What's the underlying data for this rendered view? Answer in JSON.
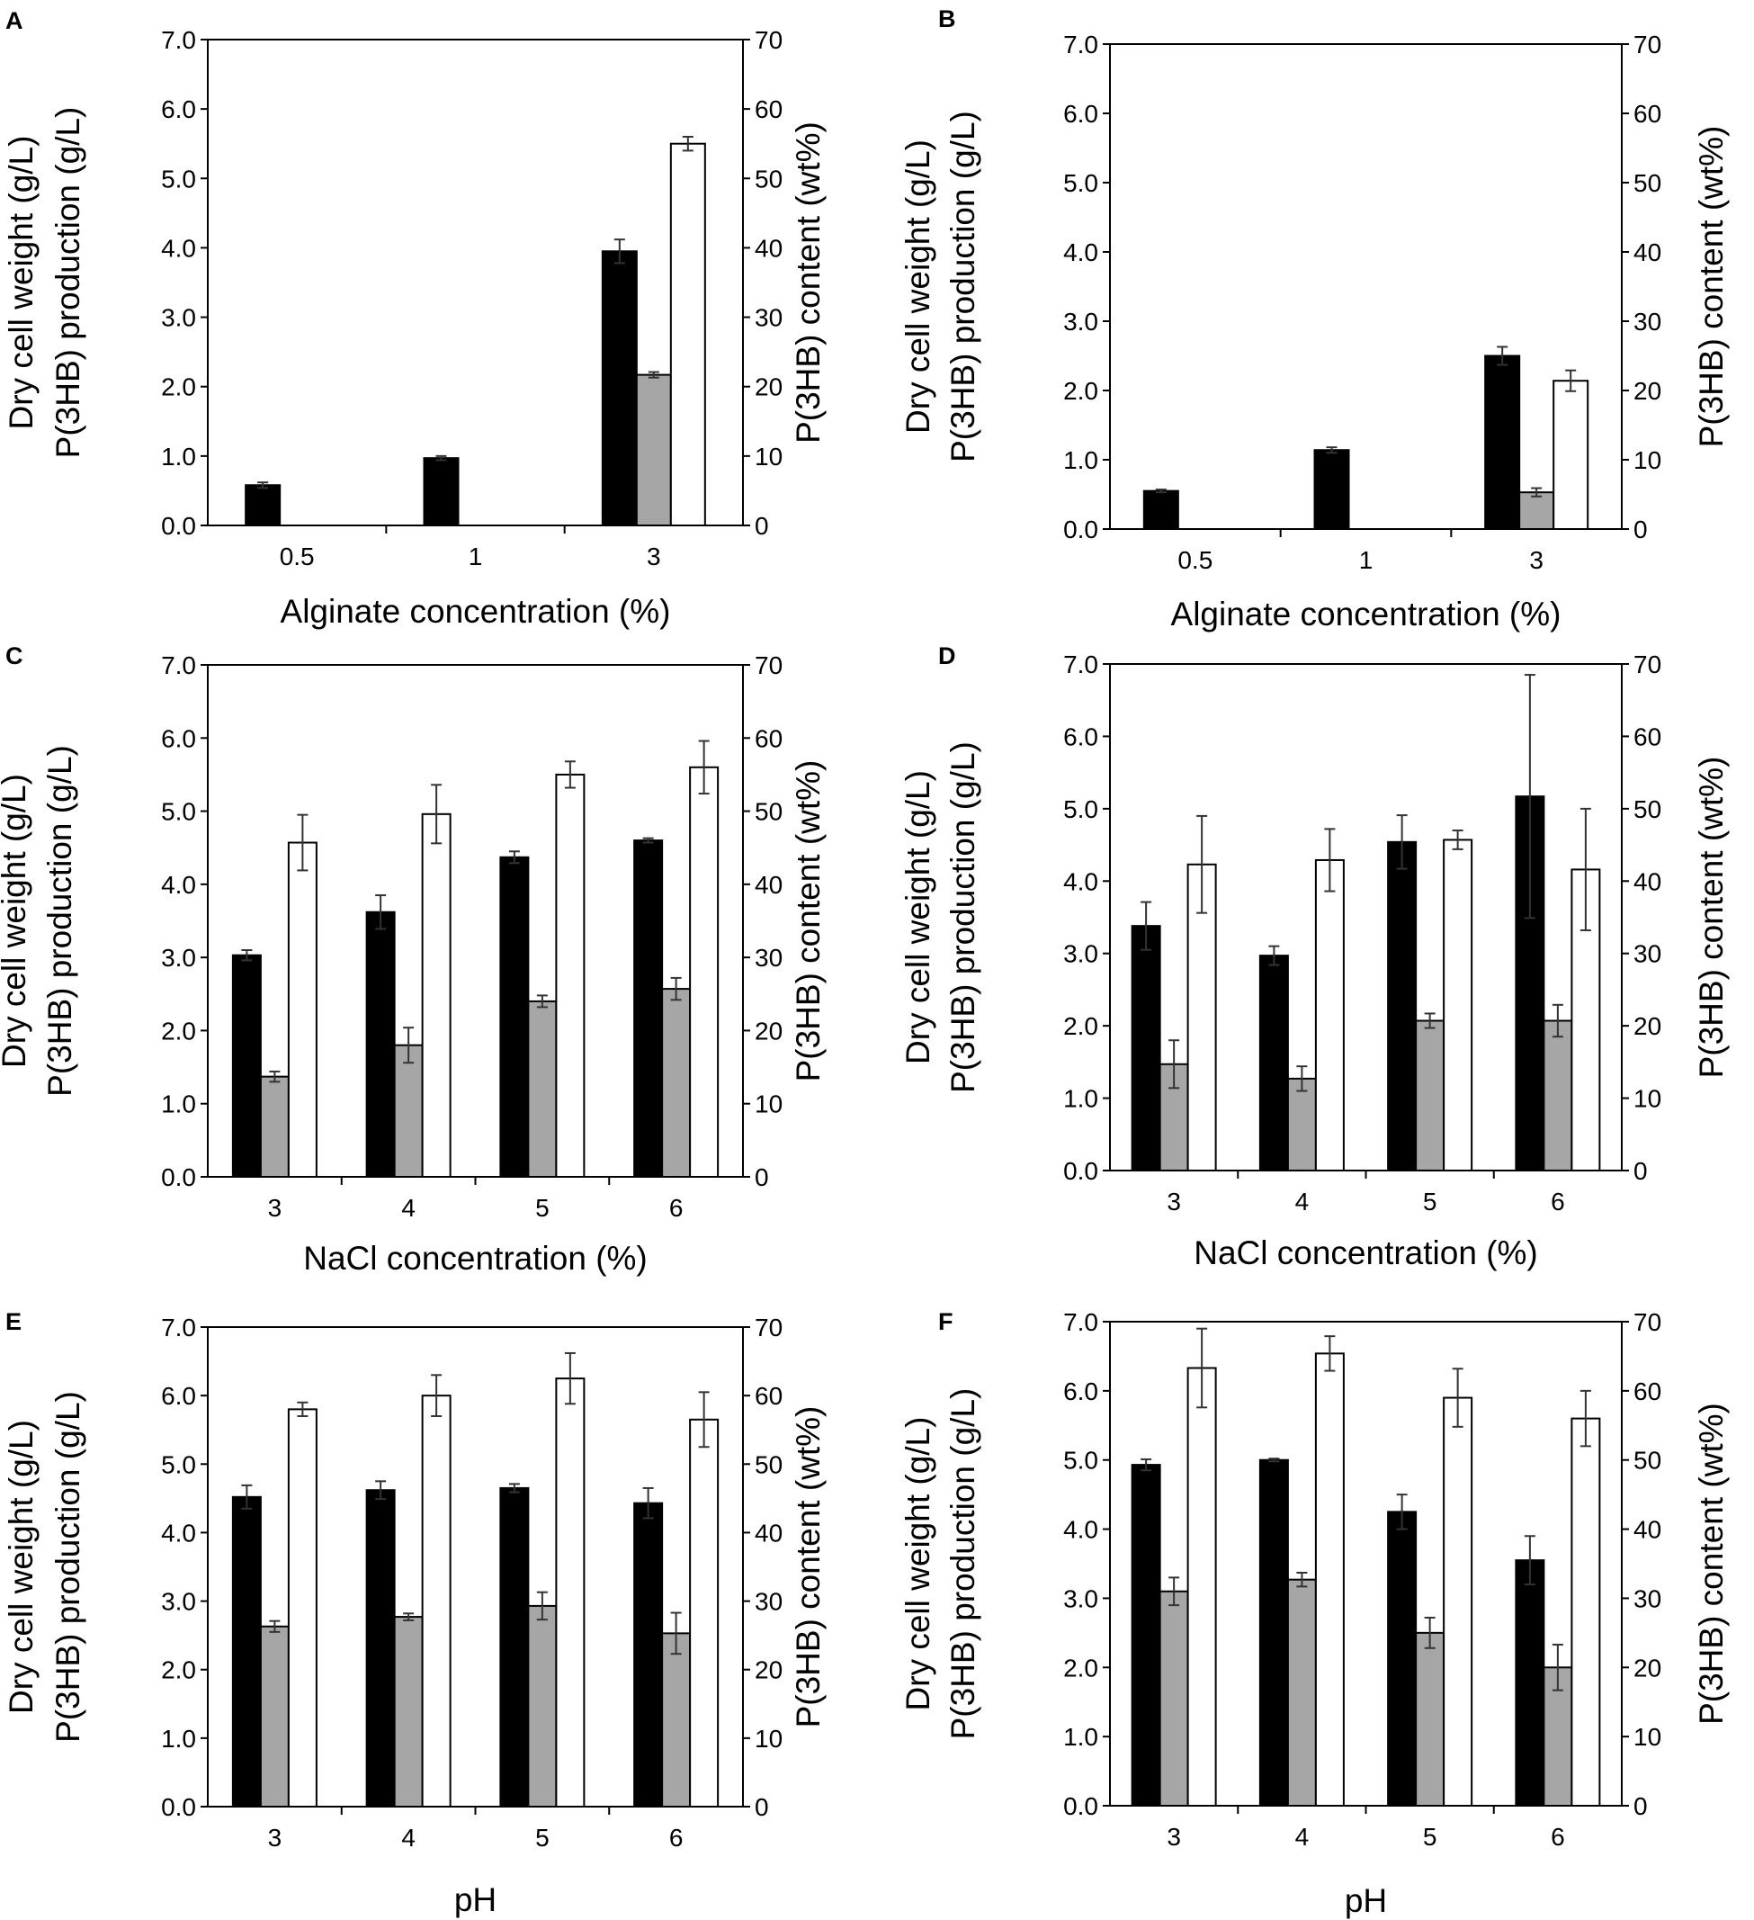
{
  "figure": {
    "legend_series": [
      "Dry cell weight (g/L)",
      "P(3HB) production (g/L)",
      "P(3HB) content (wt%)"
    ],
    "colors": {
      "dcw": "#000000",
      "p3hb": "#a6a6a6",
      "content": "#ffffff",
      "axis": "#000000",
      "error": "#333333"
    }
  },
  "chart_data": [
    {
      "id": "A",
      "type": "bar",
      "letter": "A",
      "categories": [
        "0.5",
        "1",
        "3"
      ],
      "xlabel": "Alginate concentration (%)",
      "ylabel_left": [
        "Dry cell weight (g/L)",
        "P(3HB) production (g/L)"
      ],
      "ylabel_right": "P(3HB) content (wt%)",
      "ylim_left": [
        0,
        7
      ],
      "ylim_right": [
        0,
        70
      ],
      "yticks_left": [
        "0.0",
        "1.0",
        "2.0",
        "3.0",
        "4.0",
        "5.0",
        "6.0",
        "7.0"
      ],
      "yticks_right": [
        "0",
        "10",
        "20",
        "30",
        "40",
        "50",
        "60",
        "70"
      ],
      "series": [
        {
          "name": "Dry cell weight (g/L)",
          "axis": "left",
          "values": [
            0.58,
            0.97,
            3.95
          ],
          "errors": [
            0.04,
            0.03,
            0.17
          ]
        },
        {
          "name": "P(3HB) production (g/L)",
          "axis": "left",
          "values": [
            0,
            0,
            2.17
          ],
          "errors": [
            0,
            0,
            0.04
          ]
        },
        {
          "name": "P(3HB) content (wt%)",
          "axis": "right",
          "values": [
            0,
            0,
            55.0
          ],
          "errors": [
            0,
            0,
            1.0
          ]
        }
      ]
    },
    {
      "id": "B",
      "type": "bar",
      "letter": "B",
      "categories": [
        "0.5",
        "1",
        "3"
      ],
      "xlabel": "Alginate concentration (%)",
      "ylabel_left": [
        "Dry cell weight (g/L)",
        "P(3HB) production (g/L)"
      ],
      "ylabel_right": "P(3HB) content (wt%)",
      "ylim_left": [
        0,
        7
      ],
      "ylim_right": [
        0,
        70
      ],
      "yticks_left": [
        "0.0",
        "1.0",
        "2.0",
        "3.0",
        "4.0",
        "5.0",
        "6.0",
        "7.0"
      ],
      "yticks_right": [
        "0",
        "10",
        "20",
        "30",
        "40",
        "50",
        "60",
        "70"
      ],
      "series": [
        {
          "name": "Dry cell weight (g/L)",
          "axis": "left",
          "values": [
            0.55,
            1.14,
            2.5
          ],
          "errors": [
            0.02,
            0.04,
            0.13
          ]
        },
        {
          "name": "P(3HB) production (g/L)",
          "axis": "left",
          "values": [
            0,
            0,
            0.53
          ],
          "errors": [
            0,
            0,
            0.06
          ]
        },
        {
          "name": "P(3HB) content (wt%)",
          "axis": "right",
          "values": [
            0,
            0,
            21.4
          ],
          "errors": [
            0,
            0,
            1.5
          ]
        }
      ]
    },
    {
      "id": "C",
      "type": "bar",
      "letter": "C",
      "categories": [
        "3",
        "4",
        "5",
        "6"
      ],
      "xlabel": "NaCl concentration (%)",
      "ylabel_left": [
        "Dry cell weight (g/L)",
        "P(3HB) production (g/L)"
      ],
      "ylabel_right": "P(3HB) content (wt%)",
      "ylim_left": [
        0,
        7
      ],
      "ylim_right": [
        0,
        70
      ],
      "yticks_left": [
        "0.0",
        "1.0",
        "2.0",
        "3.0",
        "4.0",
        "5.0",
        "6.0",
        "7.0"
      ],
      "yticks_right": [
        "0",
        "10",
        "20",
        "30",
        "40",
        "50",
        "60",
        "70"
      ],
      "series": [
        {
          "name": "Dry cell weight (g/L)",
          "axis": "left",
          "values": [
            3.03,
            3.62,
            4.37,
            4.6
          ],
          "errors": [
            0.07,
            0.23,
            0.08,
            0.03
          ]
        },
        {
          "name": "P(3HB) production (g/L)",
          "axis": "left",
          "values": [
            1.37,
            1.8,
            2.4,
            2.57
          ],
          "errors": [
            0.07,
            0.24,
            0.08,
            0.15
          ]
        },
        {
          "name": "P(3HB) content (wt%)",
          "axis": "right",
          "values": [
            45.7,
            49.6,
            55.0,
            56.0
          ],
          "errors": [
            3.8,
            4.0,
            1.8,
            3.6
          ]
        }
      ]
    },
    {
      "id": "D",
      "type": "bar",
      "letter": "D",
      "categories": [
        "3",
        "4",
        "5",
        "6"
      ],
      "xlabel": "NaCl concentration (%)",
      "ylabel_left": [
        "Dry cell weight (g/L)",
        "P(3HB) production (g/L)"
      ],
      "ylabel_right": "P(3HB) content (wt%)",
      "ylim_left": [
        0,
        7
      ],
      "ylim_right": [
        0,
        70
      ],
      "yticks_left": [
        "0.0",
        "1.0",
        "2.0",
        "3.0",
        "4.0",
        "5.0",
        "6.0",
        "7.0"
      ],
      "yticks_right": [
        "0",
        "10",
        "20",
        "30",
        "40",
        "50",
        "60",
        "70"
      ],
      "series": [
        {
          "name": "Dry cell weight (g/L)",
          "axis": "left",
          "values": [
            3.38,
            2.97,
            4.54,
            5.17
          ],
          "errors": [
            0.33,
            0.13,
            0.37,
            1.68
          ]
        },
        {
          "name": "P(3HB) production (g/L)",
          "axis": "left",
          "values": [
            1.47,
            1.27,
            2.07,
            2.07
          ],
          "errors": [
            0.33,
            0.17,
            0.1,
            0.22
          ]
        },
        {
          "name": "P(3HB) content (wt%)",
          "axis": "right",
          "values": [
            42.3,
            42.9,
            45.7,
            41.6
          ],
          "errors": [
            6.7,
            4.3,
            1.3,
            8.4
          ]
        }
      ]
    },
    {
      "id": "E",
      "type": "bar",
      "letter": "E",
      "categories": [
        "3",
        "4",
        "5",
        "6"
      ],
      "xlabel": "pH",
      "ylabel_left": [
        "Dry cell weight (g/L)",
        "P(3HB) production (g/L)"
      ],
      "ylabel_right": "P(3HB) content (wt%)",
      "ylim_left": [
        0,
        7
      ],
      "ylim_right": [
        0,
        70
      ],
      "yticks_left": [
        "0.0",
        "1.0",
        "2.0",
        "3.0",
        "4.0",
        "5.0",
        "6.0",
        "7.0"
      ],
      "yticks_right": [
        "0",
        "10",
        "20",
        "30",
        "40",
        "50",
        "60",
        "70"
      ],
      "series": [
        {
          "name": "Dry cell weight (g/L)",
          "axis": "left",
          "values": [
            4.52,
            4.62,
            4.65,
            4.43
          ],
          "errors": [
            0.17,
            0.13,
            0.06,
            0.22
          ]
        },
        {
          "name": "P(3HB) production (g/L)",
          "axis": "left",
          "values": [
            2.63,
            2.77,
            2.93,
            2.53
          ],
          "errors": [
            0.08,
            0.05,
            0.2,
            0.3
          ]
        },
        {
          "name": "P(3HB) content (wt%)",
          "axis": "right",
          "values": [
            58.0,
            60.0,
            62.5,
            56.5
          ],
          "errors": [
            1.0,
            3.0,
            3.7,
            4.0
          ]
        }
      ]
    },
    {
      "id": "F",
      "type": "bar",
      "letter": "F",
      "categories": [
        "3",
        "4",
        "5",
        "6"
      ],
      "xlabel": "pH",
      "ylabel_left": [
        "Dry cell weight (g/L)",
        "P(3HB) production (g/L)"
      ],
      "ylabel_right": "P(3HB) content (wt%)",
      "ylim_left": [
        0,
        7
      ],
      "ylim_right": [
        0,
        70
      ],
      "yticks_left": [
        "0.0",
        "1.0",
        "2.0",
        "3.0",
        "4.0",
        "5.0",
        "6.0",
        "7.0"
      ],
      "yticks_right": [
        "0",
        "10",
        "20",
        "30",
        "40",
        "50",
        "60",
        "70"
      ],
      "series": [
        {
          "name": "Dry cell weight (g/L)",
          "axis": "left",
          "values": [
            4.93,
            5.0,
            4.25,
            3.55
          ],
          "errors": [
            0.08,
            0.02,
            0.25,
            0.35
          ]
        },
        {
          "name": "P(3HB) production (g/L)",
          "axis": "left",
          "values": [
            3.1,
            3.27,
            2.5,
            2.0
          ],
          "errors": [
            0.2,
            0.1,
            0.22,
            0.33
          ]
        },
        {
          "name": "P(3HB) content (wt%)",
          "axis": "right",
          "values": [
            63.3,
            65.4,
            59.0,
            56.0
          ],
          "errors": [
            5.7,
            2.5,
            4.2,
            4.0
          ]
        }
      ]
    }
  ]
}
